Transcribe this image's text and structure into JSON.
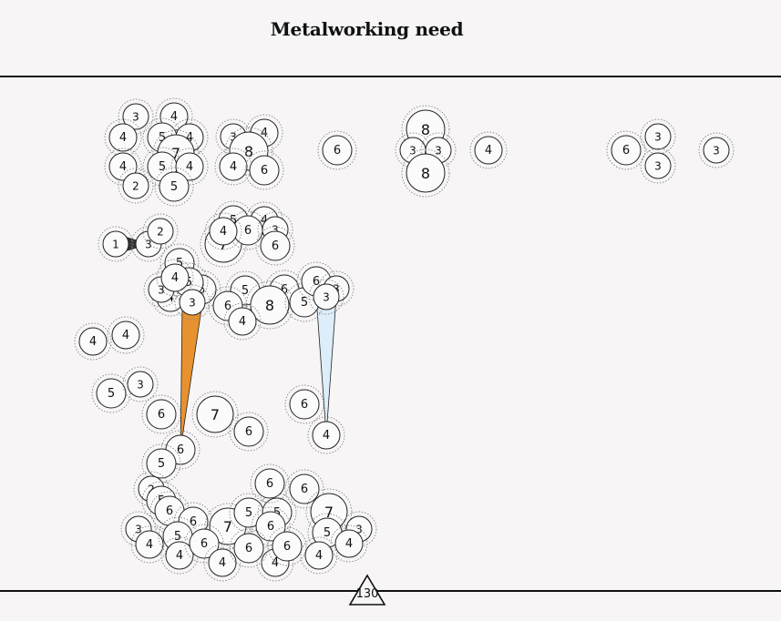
{
  "title": "Metalworking need",
  "budget": "130",
  "colors": {
    "background": "#f7f5f5",
    "node_fill": "#fbfbfb",
    "node_stroke": "#222222",
    "halo": "#888888",
    "link_orange": "#e8922f",
    "link_blue": "#dceefa",
    "link_dark": "#333333"
  },
  "nodes": [
    {
      "id": "a1",
      "v": 3
    },
    {
      "id": "a2",
      "v": 4
    },
    {
      "id": "a3",
      "v": 4
    },
    {
      "id": "a4",
      "v": 5
    },
    {
      "id": "a5",
      "v": 4
    },
    {
      "id": "a6",
      "v": 7
    },
    {
      "id": "a7",
      "v": 4
    },
    {
      "id": "a8",
      "v": 5
    },
    {
      "id": "a9",
      "v": 4
    },
    {
      "id": "a10",
      "v": 2
    },
    {
      "id": "a11",
      "v": 5
    },
    {
      "id": "b1",
      "v": 4
    },
    {
      "id": "b2",
      "v": 3
    },
    {
      "id": "b3",
      "v": 8
    },
    {
      "id": "b4",
      "v": 4
    },
    {
      "id": "b5",
      "v": 6
    },
    {
      "id": "c1",
      "v": 6
    },
    {
      "id": "d1",
      "v": 8
    },
    {
      "id": "d2",
      "v": 3
    },
    {
      "id": "d3",
      "v": 3
    },
    {
      "id": "d4",
      "v": 8
    },
    {
      "id": "e1",
      "v": 4
    },
    {
      "id": "f1",
      "v": 6
    },
    {
      "id": "f2",
      "v": 3
    },
    {
      "id": "f3",
      "v": 3
    },
    {
      "id": "g1",
      "v": 3
    },
    {
      "id": "h1",
      "v": 1
    },
    {
      "id": "h2",
      "v": 3
    },
    {
      "id": "h3",
      "v": 2
    },
    {
      "id": "i1",
      "v": 5
    },
    {
      "id": "i2",
      "v": 7
    },
    {
      "id": "i3",
      "v": 4
    },
    {
      "id": "i4",
      "v": 6
    },
    {
      "id": "i5",
      "v": 4
    },
    {
      "id": "i6",
      "v": 3
    },
    {
      "id": "i7",
      "v": 6
    },
    {
      "id": "j1",
      "v": 5
    },
    {
      "id": "j2",
      "v": 4
    },
    {
      "id": "j3",
      "v": 6
    },
    {
      "id": "j4",
      "v": 5
    },
    {
      "id": "j5",
      "v": 3
    },
    {
      "id": "j6",
      "v": 4
    },
    {
      "id": "j7",
      "v": 3
    },
    {
      "id": "k1",
      "v": 5
    },
    {
      "id": "k2",
      "v": 6
    },
    {
      "id": "k3",
      "v": 6
    },
    {
      "id": "k4",
      "v": 8
    },
    {
      "id": "k5",
      "v": 4
    },
    {
      "id": "k6",
      "v": 5
    },
    {
      "id": "k7",
      "v": 6
    },
    {
      "id": "k8",
      "v": 3
    },
    {
      "id": "k9",
      "v": 3
    },
    {
      "id": "l1",
      "v": 4
    },
    {
      "id": "l2",
      "v": 4
    },
    {
      "id": "m1",
      "v": 5
    },
    {
      "id": "m2",
      "v": 3
    },
    {
      "id": "n1",
      "v": 6
    },
    {
      "id": "n2",
      "v": 7
    },
    {
      "id": "n3",
      "v": 6
    },
    {
      "id": "o1",
      "v": 6
    },
    {
      "id": "o2",
      "v": 4
    },
    {
      "id": "p1",
      "v": 6
    },
    {
      "id": "p2",
      "v": 5
    },
    {
      "id": "q1",
      "v": 2
    },
    {
      "id": "q2",
      "v": 5
    },
    {
      "id": "q3",
      "v": 6
    },
    {
      "id": "q4",
      "v": 6
    },
    {
      "id": "q5",
      "v": 3
    },
    {
      "id": "q6",
      "v": 4
    },
    {
      "id": "q7",
      "v": 5
    },
    {
      "id": "q8",
      "v": 4
    },
    {
      "id": "q9",
      "v": 7
    },
    {
      "id": "q10",
      "v": 6
    },
    {
      "id": "q11",
      "v": 4
    },
    {
      "id": "q12",
      "v": 5
    },
    {
      "id": "q13",
      "v": 5
    },
    {
      "id": "q14",
      "v": 6
    },
    {
      "id": "q15",
      "v": 6
    },
    {
      "id": "q16",
      "v": 6
    },
    {
      "id": "q17",
      "v": 4
    },
    {
      "id": "q18",
      "v": 6
    },
    {
      "id": "q19",
      "v": 6
    },
    {
      "id": "q20",
      "v": 7
    },
    {
      "id": "q21",
      "v": 5
    },
    {
      "id": "q22",
      "v": 3
    },
    {
      "id": "q23",
      "v": 4
    },
    {
      "id": "q24",
      "v": 4
    }
  ],
  "links": [
    {
      "from": "h1",
      "to": "h2",
      "color": "link_dark"
    },
    {
      "from": "j7",
      "to": "p1",
      "color": "link_orange"
    },
    {
      "from": "k9",
      "to": "o2",
      "color": "link_blue"
    }
  ]
}
